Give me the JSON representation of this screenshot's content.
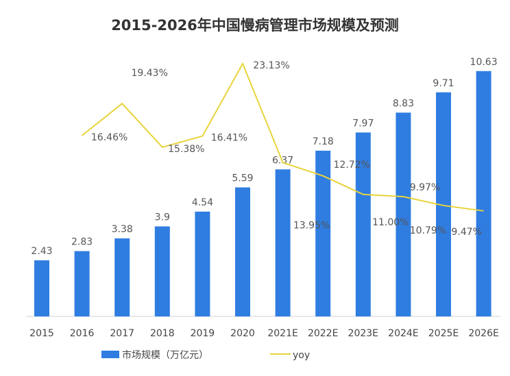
{
  "chart_data": {
    "type": "bar+line",
    "title": "2015-2026年中国慢病管理市场规模及预测",
    "categories": [
      "2015",
      "2016",
      "2017",
      "2018",
      "2019",
      "2020",
      "2021E",
      "2022E",
      "2023E",
      "2024E",
      "2025E",
      "2026E"
    ],
    "series": [
      {
        "name": "市场规模（万亿元）",
        "type": "bar",
        "color": "#2f7de1",
        "values": [
          2.43,
          2.83,
          3.38,
          3.9,
          4.54,
          5.59,
          6.37,
          7.18,
          7.97,
          8.83,
          9.71,
          10.63
        ],
        "labels": [
          "2.43",
          "2.83",
          "3.38",
          "3.9",
          "4.54",
          "5.59",
          "6.37",
          "7.18",
          "7.97",
          "8.83",
          "9.71",
          "10.63"
        ]
      },
      {
        "name": "yoy",
        "type": "line",
        "color": "#e8d33a",
        "unit": "%",
        "values": [
          null,
          16.46,
          19.43,
          15.38,
          16.41,
          23.13,
          13.95,
          12.72,
          11.0,
          10.79,
          9.97,
          9.47
        ],
        "labels": [
          null,
          "16.46%",
          "19.43%",
          "15.38%",
          "16.41%",
          "23.13%",
          "13.95%",
          "12.72%",
          "11.00%",
          "10.79%",
          "9.97%",
          "9.47%"
        ]
      }
    ],
    "legend": {
      "position": "bottom",
      "items": [
        "市场规模（万亿元）",
        "yoy"
      ]
    },
    "grid": false
  }
}
